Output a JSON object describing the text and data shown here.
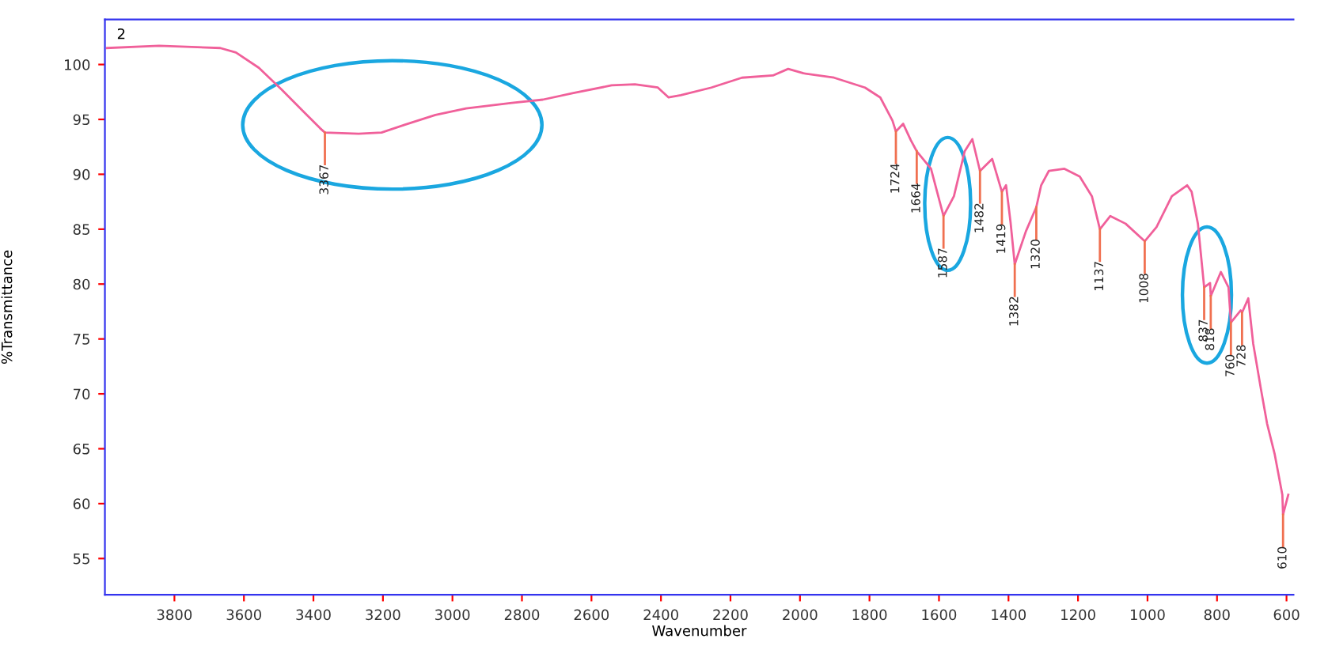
{
  "chart_data": {
    "type": "line",
    "xlabel": "Wavenumber",
    "ylabel": "%Transmittance",
    "x": [
      3994,
      3844,
      3668,
      3623,
      3557,
      3491,
      3425,
      3381,
      3367,
      3270,
      3204,
      3138,
      3049,
      2961,
      2829,
      2740,
      2652,
      2542,
      2475,
      2409,
      2378,
      2343,
      2255,
      2167,
      2078,
      2034,
      1990,
      1902,
      1813,
      1769,
      1734,
      1724,
      1703,
      1681,
      1664,
      1623,
      1587,
      1557,
      1526,
      1504,
      1482,
      1447,
      1419,
      1407,
      1394,
      1382,
      1350,
      1320,
      1306,
      1284,
      1239,
      1195,
      1160,
      1137,
      1107,
      1063,
      1008,
      974,
      930,
      886,
      873,
      855,
      837,
      820,
      818,
      789,
      767,
      760,
      732,
      728,
      710,
      696,
      674,
      656,
      634,
      612,
      610,
      595
    ],
    "series": [
      {
        "color": "#f0609a",
        "values": [
          101.5,
          101.7,
          101.5,
          101.1,
          99.7,
          97.7,
          95.6,
          94.2,
          93.8,
          93.7,
          93.8,
          94.5,
          95.4,
          96.0,
          96.5,
          96.8,
          97.4,
          98.1,
          98.2,
          97.9,
          97.0,
          97.2,
          97.9,
          98.8,
          99.0,
          99.6,
          99.2,
          98.8,
          97.9,
          97.0,
          94.9,
          93.9,
          94.6,
          93.1,
          92.1,
          90.5,
          86.2,
          88.0,
          92.1,
          93.2,
          90.3,
          91.4,
          88.4,
          89.0,
          85.6,
          81.8,
          84.8,
          87.0,
          89.0,
          90.3,
          90.5,
          89.8,
          88.0,
          85.0,
          86.2,
          85.5,
          83.9,
          85.2,
          88.0,
          89.0,
          88.4,
          85.5,
          79.7,
          80.1,
          78.9,
          81.1,
          79.7,
          76.5,
          77.6,
          77.4,
          78.7,
          74.6,
          70.5,
          67.3,
          64.5,
          60.8,
          59.0,
          60.8
        ]
      }
    ],
    "xlim": [
      4000,
      580
    ],
    "ylim": [
      51.7,
      104.1
    ],
    "xticks": [
      3800,
      3600,
      3400,
      3200,
      3000,
      2800,
      2600,
      2400,
      2200,
      2000,
      1800,
      1600,
      1400,
      1200,
      1000,
      800,
      600
    ],
    "yticks": [
      55,
      60,
      65,
      70,
      75,
      80,
      85,
      90,
      95,
      100
    ],
    "grid": false,
    "legend": false,
    "marker": "none",
    "line_style": "solid",
    "annotations": [
      "2",
      {
        "text": "3367",
        "x": 3367,
        "y": 93.8
      },
      {
        "text": "1724",
        "x": 1724,
        "y": 93.9
      },
      {
        "text": "1664",
        "x": 1664,
        "y": 92.1
      },
      {
        "text": "1587",
        "x": 1587,
        "y": 86.2
      },
      {
        "text": "1482",
        "x": 1482,
        "y": 90.3
      },
      {
        "text": "1419",
        "x": 1419,
        "y": 88.4
      },
      {
        "text": "1382",
        "x": 1382,
        "y": 81.8
      },
      {
        "text": "1320",
        "x": 1320,
        "y": 87.0
      },
      {
        "text": "1137",
        "x": 1137,
        "y": 85.0
      },
      {
        "text": "1008",
        "x": 1008,
        "y": 83.9
      },
      {
        "text": "837",
        "x": 837,
        "y": 79.7
      },
      {
        "text": "818",
        "x": 818,
        "y": 78.9
      },
      {
        "text": "760",
        "x": 760,
        "y": 76.5
      },
      {
        "text": "728",
        "x": 728,
        "y": 77.4
      },
      {
        "text": "610",
        "x": 610,
        "y": 59.0
      }
    ]
  }
}
